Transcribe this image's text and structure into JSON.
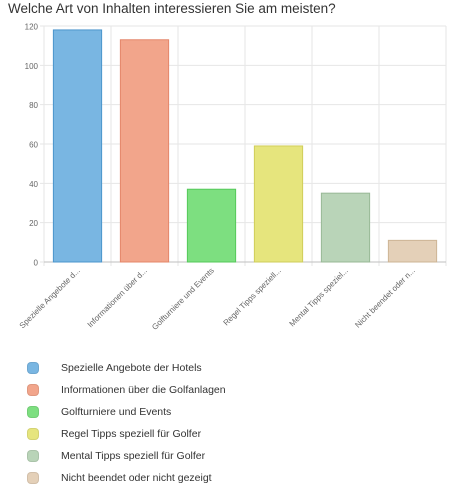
{
  "title": "Welche Art von Inhalten interessieren Sie am meisten?",
  "chart_data": {
    "type": "bar",
    "categories": [
      "Spezielle Angebote d...",
      "Informationen über d...",
      "Golfturniere und Events",
      "Regel Tipps speziell...",
      "Mental Tipps speziel...",
      "Nicht beendet oder n..."
    ],
    "values": [
      118,
      113,
      37,
      59,
      35,
      11
    ],
    "ylim": [
      0,
      120
    ],
    "yticks": [
      "0",
      "20",
      "40",
      "60",
      "80",
      "100",
      "120"
    ],
    "colors": [
      "#79b6e2",
      "#f2a58b",
      "#7ddf80",
      "#e6e57d",
      "#b9d4b8",
      "#e4d0b8"
    ],
    "border_colors": [
      "#4b95cc",
      "#e4876a",
      "#55c95a",
      "#cfcd5a",
      "#98b896",
      "#cdb595"
    ],
    "grid": true,
    "legend_position": "bottom-left",
    "legend": [
      {
        "label": "Spezielle Angebote der Hotels",
        "color": "#79b6e2"
      },
      {
        "label": "Informationen über die Golfanlagen",
        "color": "#f2a58b"
      },
      {
        "label": "Golfturniere und Events",
        "color": "#7ddf80"
      },
      {
        "label": "Regel Tipps speziell für Golfer",
        "color": "#e6e57d"
      },
      {
        "label": "Mental Tipps speziell für Golfer",
        "color": "#b9d4b8"
      },
      {
        "label": "Nicht beendet oder nicht gezeigt",
        "color": "#e4d0b8"
      }
    ]
  }
}
